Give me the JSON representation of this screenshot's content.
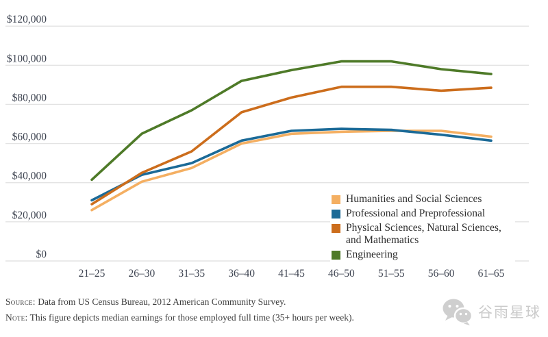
{
  "chart_data": {
    "type": "line",
    "title": "",
    "xlabel": "",
    "ylabel": "",
    "categories": [
      "21–25",
      "26–30",
      "31–35",
      "36–40",
      "41–45",
      "46–50",
      "51–55",
      "56–60",
      "61–65"
    ],
    "series": [
      {
        "name": "Humanities and Social Sciences",
        "color": "#F4AF62",
        "values": [
          26000,
          40500,
          47500,
          60000,
          65000,
          66000,
          66500,
          66500,
          63500
        ]
      },
      {
        "name": "Professional and Preprofessional",
        "color": "#1B6A97",
        "values": [
          31000,
          44000,
          50000,
          61500,
          66500,
          67500,
          67000,
          64500,
          61500
        ]
      },
      {
        "name": "Physical Sciences, Natural Sciences, and Mathematics",
        "color": "#CC6D1C",
        "values": [
          29000,
          45000,
          56000,
          76000,
          83500,
          89000,
          89000,
          87000,
          88500
        ]
      },
      {
        "name": "Engineering",
        "color": "#4E7A28",
        "values": [
          41500,
          65000,
          77000,
          92000,
          97500,
          102000,
          102000,
          98000,
          95500
        ]
      }
    ],
    "ylim": [
      0,
      120000
    ],
    "ytick_step": 20000,
    "ytick_labels": [
      "$0",
      "$20,000",
      "$40,000",
      "$60,000",
      "$80,000",
      "$100,000",
      "$120,000"
    ],
    "grid": "horizontal",
    "gridline_color": "#e3e3e3",
    "legend_position": "inside-right-bottom"
  },
  "legend": {
    "items": [
      {
        "color": "#F4AF62",
        "label_lines": [
          "Humanities and Social Sciences"
        ]
      },
      {
        "color": "#1B6A97",
        "label_lines": [
          "Professional and Preprofessional"
        ]
      },
      {
        "color": "#CC6D1C",
        "label_lines": [
          "Physical Sciences, Natural Sciences,",
          "and Mathematics"
        ]
      },
      {
        "color": "#4E7A28",
        "label_lines": [
          "Engineering"
        ]
      }
    ]
  },
  "notes": {
    "source_label": "Source:",
    "source_text": " Data from US Census Bureau, 2012 American Community Survey.",
    "note_label": "Note:",
    "note_text": " This figure depicts median earnings for those employed full time (35+ hours per week)."
  },
  "watermark": {
    "text": "谷雨星球"
  }
}
